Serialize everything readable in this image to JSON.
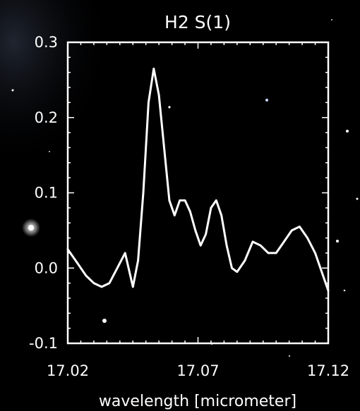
{
  "chart_data": {
    "type": "line",
    "title": "H2 S(1)",
    "xlabel": "wavelength [micrometer]",
    "ylabel": "",
    "xlim": [
      17.02,
      17.12
    ],
    "ylim": [
      -0.1,
      0.3
    ],
    "x_ticks": [
      "17.02",
      "17.07",
      "17.12"
    ],
    "y_ticks": [
      "0.3",
      "0.2",
      "0.1",
      "0.0",
      "-0.1"
    ],
    "grid": false,
    "series": [
      {
        "color": "#ffffff",
        "x": [
          17.02,
          17.024,
          17.027,
          17.03,
          17.033,
          17.036,
          17.039,
          17.042,
          17.045,
          17.047,
          17.049,
          17.051,
          17.053,
          17.055,
          17.057,
          17.059,
          17.061,
          17.063,
          17.065,
          17.067,
          17.069,
          17.071,
          17.073,
          17.075,
          17.077,
          17.079,
          17.081,
          17.083,
          17.085,
          17.088,
          17.091,
          17.094,
          17.097,
          17.1,
          17.103,
          17.106,
          17.109,
          17.112,
          17.115,
          17.118,
          17.12
        ],
        "y": [
          0.025,
          0.005,
          -0.01,
          -0.02,
          -0.025,
          -0.02,
          0.0,
          0.02,
          -0.025,
          0.01,
          0.1,
          0.22,
          0.265,
          0.23,
          0.16,
          0.09,
          0.07,
          0.09,
          0.09,
          0.075,
          0.05,
          0.03,
          0.045,
          0.08,
          0.09,
          0.07,
          0.03,
          0.0,
          -0.005,
          0.01,
          0.035,
          0.03,
          0.02,
          0.02,
          0.035,
          0.05,
          0.055,
          0.04,
          0.02,
          -0.01,
          -0.03
        ]
      }
    ]
  },
  "colors": {
    "background": "#000000",
    "axes": "#ffffff",
    "line": "#ffffff"
  }
}
